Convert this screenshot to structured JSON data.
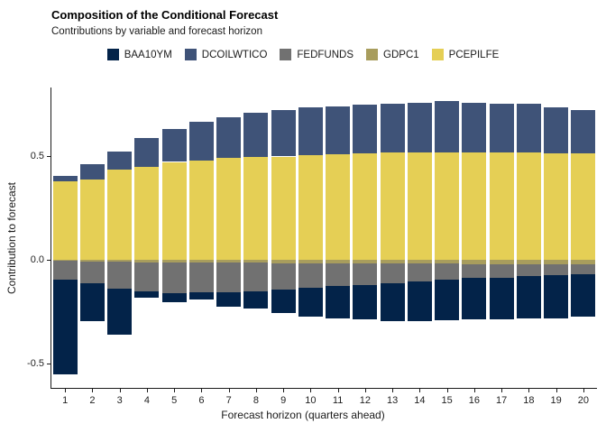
{
  "header": {
    "title": "Composition of the Conditional Forecast",
    "subtitle": "Contributions by variable and forecast horizon"
  },
  "chart_data": {
    "type": "bar",
    "stacked": true,
    "title": "Composition of the Conditional Forecast",
    "subtitle": "Contributions by variable and forecast horizon",
    "xlabel": "Forecast horizon (quarters ahead)",
    "ylabel": "Contribution to forecast",
    "x": [
      1,
      2,
      3,
      4,
      5,
      6,
      7,
      8,
      9,
      10,
      11,
      12,
      13,
      14,
      15,
      16,
      17,
      18,
      19,
      20
    ],
    "series": [
      {
        "name": "BAA10YM",
        "color": "#032349",
        "values": [
          -0.454,
          -0.18,
          -0.221,
          -0.032,
          -0.043,
          -0.033,
          -0.066,
          -0.082,
          -0.111,
          -0.138,
          -0.158,
          -0.167,
          -0.179,
          -0.191,
          -0.195,
          -0.197,
          -0.2,
          -0.206,
          -0.207,
          -0.206
        ]
      },
      {
        "name": "DCOILWTICO",
        "color": "#3f5378",
        "values": [
          0.026,
          0.075,
          0.091,
          0.14,
          0.16,
          0.184,
          0.195,
          0.212,
          0.223,
          0.231,
          0.232,
          0.234,
          0.237,
          0.24,
          0.245,
          0.238,
          0.237,
          0.234,
          0.223,
          0.209
        ]
      },
      {
        "name": "FEDFUNDS",
        "color": "#717171",
        "values": [
          -0.09,
          -0.107,
          -0.129,
          -0.139,
          -0.148,
          -0.143,
          -0.144,
          -0.138,
          -0.127,
          -0.117,
          -0.107,
          -0.102,
          -0.096,
          -0.083,
          -0.076,
          -0.068,
          -0.065,
          -0.055,
          -0.051,
          -0.046
        ]
      },
      {
        "name": "GDPC1",
        "color": "#a89d5d",
        "values": [
          -0.004,
          -0.006,
          -0.008,
          -0.01,
          -0.011,
          -0.012,
          -0.013,
          -0.014,
          -0.015,
          -0.016,
          -0.016,
          -0.017,
          -0.017,
          -0.018,
          -0.018,
          -0.019,
          -0.019,
          -0.02,
          -0.021,
          -0.022
        ]
      },
      {
        "name": "PCEPILFE",
        "color": "#e5cf55",
        "values": [
          0.378,
          0.387,
          0.433,
          0.447,
          0.472,
          0.48,
          0.49,
          0.495,
          0.498,
          0.505,
          0.508,
          0.512,
          0.516,
          0.518,
          0.518,
          0.518,
          0.516,
          0.516,
          0.513,
          0.512
        ]
      }
    ],
    "positive_stack_order": [
      "PCEPILFE",
      "DCOILWTICO"
    ],
    "negative_stack_order": [
      "GDPC1",
      "FEDFUNDS",
      "BAA10YM"
    ],
    "ylim": [
      -0.615,
      0.83
    ],
    "yticks": [
      {
        "value": 0.5,
        "label": "0.5"
      },
      {
        "value": 0.0,
        "label": "0.0"
      },
      {
        "value": -0.5,
        "label": "-0.5"
      }
    ],
    "grid": false,
    "legend_position": "top",
    "axis_color": "#1a1a1a",
    "background_color": "#ffffff"
  }
}
